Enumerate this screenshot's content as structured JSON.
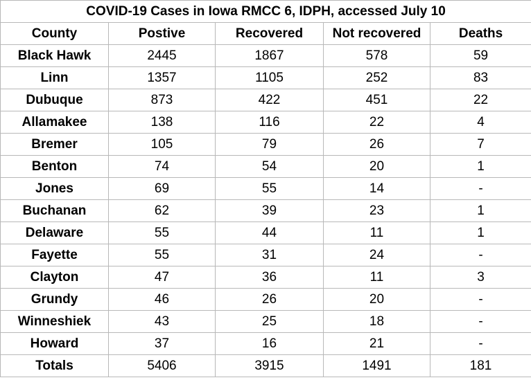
{
  "chart_data": {
    "type": "table",
    "title": "COVID-19 Cases in Iowa RMCC 6, IDPH, accessed July 10",
    "columns": [
      "County",
      "Postive",
      "Recovered",
      "Not recovered",
      "Deaths"
    ],
    "rows": [
      [
        "Black Hawk",
        "2445",
        "1867",
        "578",
        "59"
      ],
      [
        "Linn",
        "1357",
        "1105",
        "252",
        "83"
      ],
      [
        "Dubuque",
        "873",
        "422",
        "451",
        "22"
      ],
      [
        "Allamakee",
        "138",
        "116",
        "22",
        "4"
      ],
      [
        "Bremer",
        "105",
        "79",
        "26",
        "7"
      ],
      [
        "Benton",
        "74",
        "54",
        "20",
        "1"
      ],
      [
        "Jones",
        "69",
        "55",
        "14",
        "-"
      ],
      [
        "Buchanan",
        "62",
        "39",
        "23",
        "1"
      ],
      [
        "Delaware",
        "55",
        "44",
        "11",
        "1"
      ],
      [
        "Fayette",
        "55",
        "31",
        "24",
        "-"
      ],
      [
        "Clayton",
        "47",
        "36",
        "11",
        "3"
      ],
      [
        "Grundy",
        "46",
        "26",
        "20",
        "-"
      ],
      [
        "Winneshiek",
        "43",
        "25",
        "18",
        "-"
      ],
      [
        "Howard",
        "37",
        "16",
        "21",
        "-"
      ],
      [
        "Totals",
        "5406",
        "3915",
        "1491",
        "181"
      ]
    ]
  }
}
